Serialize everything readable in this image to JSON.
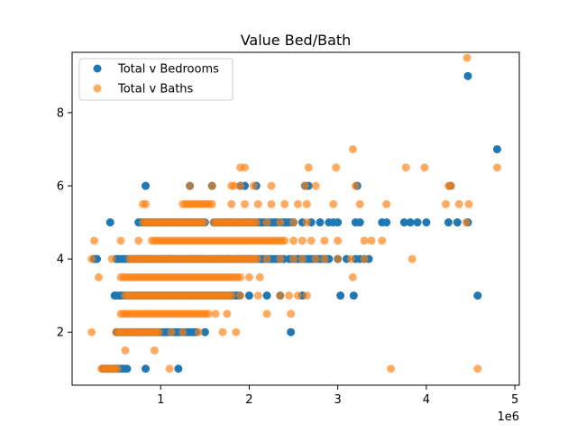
{
  "chart_data": {
    "type": "scatter",
    "title": "Value Bed/Bath",
    "xlabel": "",
    "ylabel": "",
    "x_offset_label": "1e6",
    "xlim": [
      0.0,
      5.05
    ],
    "ylim": [
      0.55,
      9.65
    ],
    "x_ticks": [
      {
        "value": 1,
        "label": "1"
      },
      {
        "value": 2,
        "label": "2"
      },
      {
        "value": 3,
        "label": "3"
      },
      {
        "value": 4,
        "label": "4"
      },
      {
        "value": 5,
        "label": "5"
      }
    ],
    "y_ticks": [
      {
        "value": 2,
        "label": "2"
      },
      {
        "value": 4,
        "label": "4"
      },
      {
        "value": 6,
        "label": "6"
      },
      {
        "value": 8,
        "label": "8"
      }
    ],
    "grid": false,
    "legend": "top-left",
    "series": [
      {
        "name": "Total v Bedrooms",
        "color": "#1f77b4",
        "alpha": 1.0,
        "bands": [
          {
            "y": 1,
            "ranges": [
              [
                0.35,
                0.62
              ]
            ],
            "extra": [
              0.83,
              1.2
            ]
          },
          {
            "y": 2,
            "ranges": [
              [
                0.5,
                1.4
              ]
            ],
            "extra": [
              1.5,
              2.47
            ]
          },
          {
            "y": 3,
            "ranges": [
              [
                0.48,
                1.9
              ]
            ],
            "extra": [
              2.0,
              2.2,
              2.35,
              2.6,
              3.03,
              3.18,
              4.58
            ]
          },
          {
            "y": 4,
            "ranges": [
              [
                0.25,
                0.3
              ],
              [
                0.5,
                2.4
              ],
              [
                2.45,
                2.9
              ]
            ],
            "extra": [
              3.0,
              3.1,
              3.2,
              3.25,
              3.3,
              3.35
            ]
          },
          {
            "y": 5,
            "ranges": [
              [
                0.75,
                1.5
              ],
              [
                1.6,
                2.5
              ]
            ],
            "extra": [
              0.43,
              2.6,
              2.7,
              2.8,
              2.9,
              2.95,
              3.0,
              3.2,
              3.25,
              3.5,
              3.55,
              3.75,
              3.82,
              3.9,
              4.0,
              4.25,
              4.35,
              4.47
            ]
          },
          {
            "y": 6,
            "ranges": [],
            "extra": [
              0.83,
              1.33,
              1.58,
              1.9,
              1.95,
              2.08,
              2.63,
              2.67,
              3.22,
              4.27
            ]
          },
          {
            "y": 7,
            "ranges": [],
            "extra": [
              4.8
            ]
          },
          {
            "y": 9,
            "ranges": [],
            "extra": [
              4.47
            ]
          }
        ]
      },
      {
        "name": "Total v Baths",
        "color": "#ff7f0e",
        "alpha": 0.65,
        "bands": [
          {
            "y": 1,
            "ranges": [
              [
                0.33,
                0.52
              ]
            ],
            "extra": [
              1.1,
              3.6,
              4.58
            ]
          },
          {
            "y": 1.5,
            "ranges": [],
            "extra": [
              0.6,
              0.93
            ]
          },
          {
            "y": 2,
            "ranges": [
              [
                0.5,
                1.0
              ]
            ],
            "extra": [
              0.22,
              1.12,
              1.25,
              1.43,
              1.7,
              1.85
            ]
          },
          {
            "y": 2.5,
            "ranges": [
              [
                0.55,
                1.55
              ]
            ],
            "extra": [
              1.62,
              1.75,
              2.2,
              2.47
            ]
          },
          {
            "y": 3,
            "ranges": [
              [
                0.6,
                1.8
              ]
            ],
            "extra": [
              1.9,
              2.1,
              2.35,
              2.45,
              2.55,
              2.65
            ]
          },
          {
            "y": 3.5,
            "ranges": [
              [
                0.55,
                1.9
              ]
            ],
            "extra": [
              0.3,
              2.0,
              2.12,
              3.17
            ]
          },
          {
            "y": 4,
            "ranges": [
              [
                0.65,
                2.1
              ]
            ],
            "extra": [
              0.22,
              0.45,
              2.2,
              2.35,
              2.5,
              2.6,
              2.75,
              2.85,
              3.0,
              3.15,
              3.3,
              3.84
            ]
          },
          {
            "y": 4.5,
            "ranges": [
              [
                0.9,
                2.4
              ]
            ],
            "extra": [
              0.25,
              0.55,
              0.75,
              2.5,
              2.6,
              2.7,
              2.85,
              3.0,
              3.3,
              3.38,
              3.5
            ]
          },
          {
            "y": 5,
            "ranges": [
              [
                0.8,
                1.5
              ],
              [
                1.6,
                2.1
              ]
            ],
            "extra": [
              2.2,
              2.35,
              2.5,
              2.65,
              4.45
            ]
          },
          {
            "y": 5.5,
            "ranges": [
              [
                0.8,
                0.85
              ],
              [
                1.25,
                1.6
              ]
            ],
            "extra": [
              1.8,
              1.95,
              2.1,
              2.25,
              2.4,
              2.55,
              2.65,
              2.95,
              3.25,
              3.55,
              4.22,
              4.37,
              4.48
            ]
          },
          {
            "y": 6,
            "ranges": [],
            "extra": [
              1.33,
              1.58,
              1.8,
              1.83,
              1.9,
              2.05,
              2.25,
              2.63,
              2.75,
              3.2,
              4.25,
              4.28
            ]
          },
          {
            "y": 6.5,
            "ranges": [],
            "extra": [
              1.9,
              1.95,
              2.67,
              2.98,
              3.77,
              3.98,
              4.8
            ]
          },
          {
            "y": 7,
            "ranges": [],
            "extra": [
              3.17
            ]
          },
          {
            "y": 9.5,
            "ranges": [],
            "extra": [
              4.46
            ]
          }
        ]
      }
    ]
  }
}
